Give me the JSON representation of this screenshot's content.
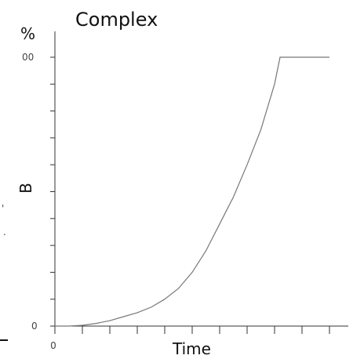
{
  "chart_data": {
    "type": "line",
    "title": "Complex",
    "xlabel": "Time",
    "ylabel": "B",
    "y_unit": "%",
    "y_tick_labels": [
      "0",
      "00"
    ],
    "x_tick_labels": [
      "0"
    ],
    "ylim": [
      0,
      100
    ],
    "xlim": [
      0,
      10
    ],
    "grid": false,
    "legend": "none",
    "line_color": "#777777",
    "axis_color": "#333333",
    "series": [
      {
        "x": [
          0,
          0.5,
          1,
          1.5,
          2,
          2.5,
          3,
          3.5,
          4,
          4.5,
          5,
          5.5,
          6,
          6.5,
          7,
          7.5,
          8,
          8.2,
          8.5,
          9,
          9.5,
          10
        ],
        "values": [
          0,
          0,
          0.3,
          1,
          2,
          3.5,
          5,
          7,
          10,
          14,
          20,
          28,
          38,
          48,
          60,
          73,
          90,
          100,
          100,
          100,
          100,
          100
        ]
      }
    ]
  }
}
